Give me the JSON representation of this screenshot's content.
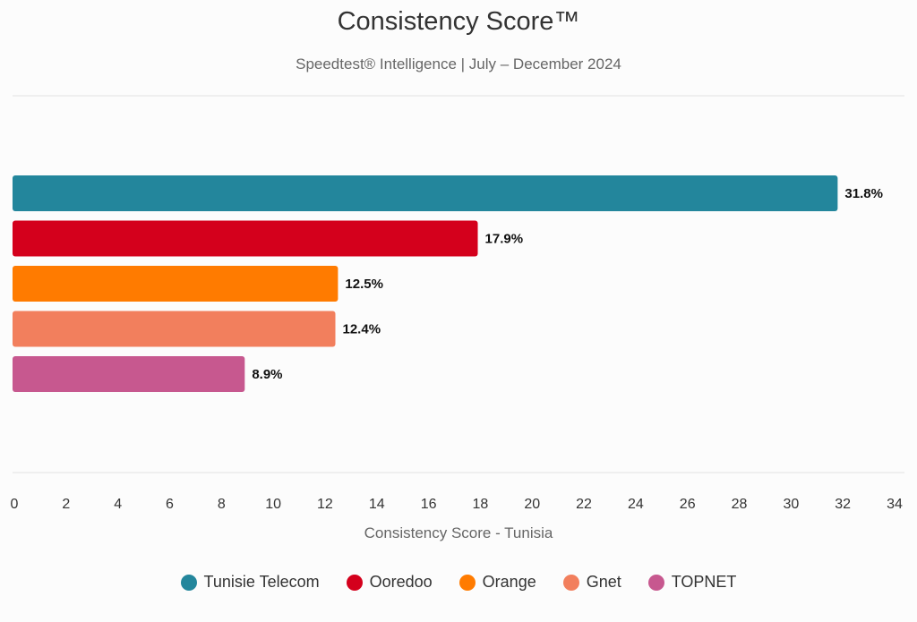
{
  "chart_data": {
    "type": "bar",
    "orientation": "horizontal",
    "title": "Consistency Score™",
    "subtitle": "Speedtest® Intelligence | July – December 2024",
    "xlabel": "Consistency Score - Tunisia",
    "ylabel": "",
    "xlim": [
      0,
      34
    ],
    "x_ticks": [
      "0",
      "2",
      "4",
      "6",
      "8",
      "10",
      "12",
      "14",
      "16",
      "18",
      "20",
      "22",
      "24",
      "26",
      "28",
      "30",
      "32",
      "34"
    ],
    "grid": false,
    "legend_position": "bottom",
    "categories": [
      "Tunisie Telecom",
      "Ooredoo",
      "Orange",
      "Gnet",
      "TOPNET"
    ],
    "values": [
      31.8,
      17.9,
      12.5,
      12.4,
      8.9
    ],
    "value_labels": [
      "31.8%",
      "17.9%",
      "12.5%",
      "12.4%",
      "8.9%"
    ],
    "colors": [
      "#23869c",
      "#d4001c",
      "#ff7b00",
      "#f27f5d",
      "#c7588f"
    ]
  }
}
